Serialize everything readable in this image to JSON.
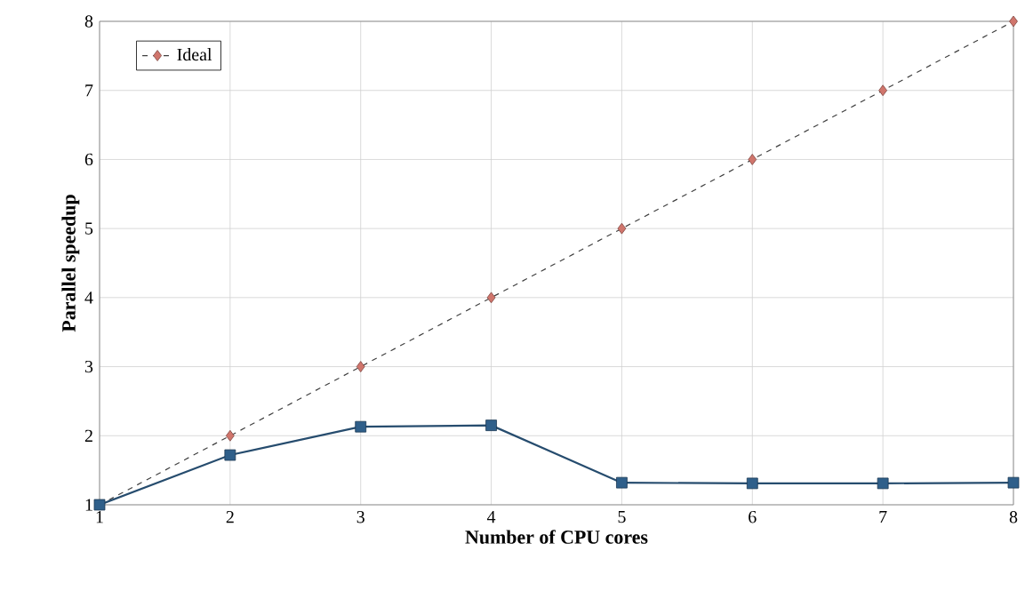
{
  "chart_data": {
    "type": "line",
    "xlabel": "Number of CPU cores",
    "ylabel": "Parallel speedup",
    "x": [
      1,
      2,
      3,
      4,
      5,
      6,
      7,
      8
    ],
    "series": [
      {
        "name": "Ideal",
        "color": "#d0756c",
        "values": [
          1,
          2,
          3,
          4,
          5,
          6,
          7,
          8
        ],
        "marker": "diamond",
        "line_style": "dashed"
      },
      {
        "color": "#2f5f8a",
        "values": [
          1,
          1.72,
          2.13,
          2.15,
          1.32,
          1.31,
          1.31,
          1.32
        ],
        "marker": "square",
        "line_style": "solid"
      }
    ],
    "xlim": [
      1,
      8
    ],
    "xticks": [
      1,
      2,
      3,
      4,
      5,
      6,
      7,
      8
    ],
    "ylim": [
      1,
      8
    ],
    "yticks": [
      1,
      2,
      3,
      4,
      5,
      6,
      7,
      8
    ],
    "grid": true,
    "legend": "top left"
  }
}
